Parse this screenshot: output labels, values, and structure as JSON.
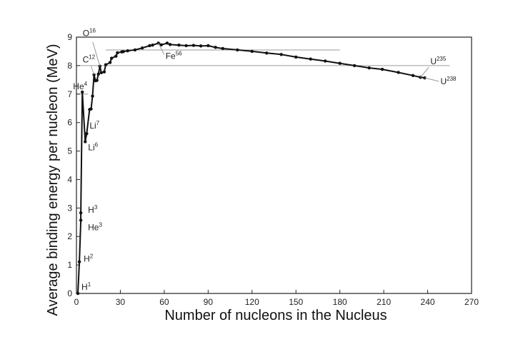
{
  "chart_data": {
    "type": "line",
    "xlabel": "Number of nucleons in the Nucleus",
    "ylabel": "Average binding energy per nucleon (MeV)",
    "xlim": [
      0,
      270
    ],
    "ylim": [
      0,
      9
    ],
    "xticks": [
      "0",
      "30",
      "60",
      "90",
      "120",
      "150",
      "180",
      "210",
      "240",
      "270"
    ],
    "yticks": [
      "0",
      "1",
      "2",
      "3",
      "4",
      "5",
      "6",
      "7",
      "8",
      "9"
    ],
    "grid": false,
    "series": [
      {
        "x": [
          1,
          2,
          3,
          3,
          4,
          6,
          7,
          9,
          10,
          11,
          12,
          13,
          14,
          15,
          16,
          17,
          19,
          20,
          23,
          24,
          27,
          28,
          31,
          32,
          35,
          40,
          45,
          50,
          52,
          56,
          58,
          62,
          64,
          70,
          75,
          80,
          85,
          90,
          95,
          100,
          110,
          120,
          130,
          140,
          150,
          160,
          170,
          180,
          190,
          200,
          209,
          220,
          230,
          235,
          238
        ],
        "y": [
          0.0,
          1.11,
          2.57,
          2.83,
          7.07,
          5.33,
          5.61,
          6.46,
          6.48,
          6.93,
          7.68,
          7.47,
          7.48,
          7.7,
          7.98,
          7.75,
          7.78,
          8.03,
          8.11,
          8.26,
          8.33,
          8.45,
          8.48,
          8.49,
          8.52,
          8.55,
          8.62,
          8.7,
          8.72,
          8.79,
          8.73,
          8.79,
          8.74,
          8.72,
          8.7,
          8.71,
          8.69,
          8.7,
          8.64,
          8.6,
          8.55,
          8.5,
          8.44,
          8.39,
          8.3,
          8.23,
          8.16,
          8.08,
          8.0,
          7.92,
          7.87,
          7.76,
          7.65,
          7.59,
          7.57
        ]
      }
    ],
    "reference_lines": [
      {
        "y": 8.55,
        "x_from": 20,
        "x_to": 180
      },
      {
        "y": 8.0,
        "x_from": 0,
        "x_to": 255
      },
      {
        "y": 7.0,
        "x_from": 0,
        "x_to": 8
      }
    ],
    "annotations": [
      {
        "symbol": "H",
        "mass": "1",
        "x": 1,
        "y": 0.0
      },
      {
        "symbol": "H",
        "mass": "2",
        "x": 2,
        "y": 1.11
      },
      {
        "symbol": "H",
        "mass": "3",
        "x": 3,
        "y": 2.83
      },
      {
        "symbol": "He",
        "mass": "3",
        "x": 3,
        "y": 2.57
      },
      {
        "symbol": "He",
        "mass": "4",
        "x": 4,
        "y": 7.07
      },
      {
        "symbol": "Li",
        "mass": "6",
        "x": 6,
        "y": 5.33
      },
      {
        "symbol": "Li",
        "mass": "7",
        "x": 7,
        "y": 5.61
      },
      {
        "symbol": "C",
        "mass": "12",
        "x": 12,
        "y": 7.68
      },
      {
        "symbol": "O",
        "mass": "16",
        "x": 16,
        "y": 7.98
      },
      {
        "symbol": "Fe",
        "mass": "56",
        "x": 56,
        "y": 8.79
      },
      {
        "symbol": "U",
        "mass": "235",
        "x": 235,
        "y": 7.59
      },
      {
        "symbol": "U",
        "mass": "238",
        "x": 238,
        "y": 7.57
      }
    ]
  },
  "colors": {
    "line": "#111111",
    "reference": "#9a9a9a",
    "axis": "#222222"
  }
}
